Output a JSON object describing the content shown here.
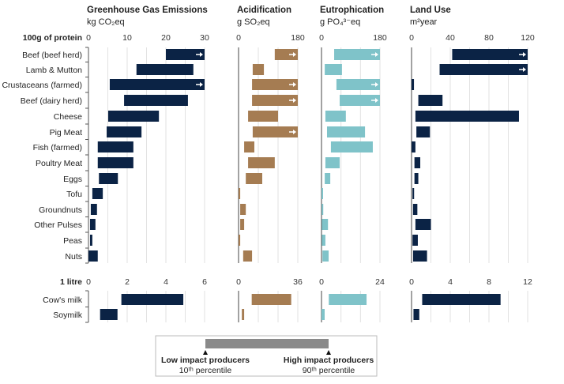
{
  "chart_data": {
    "type": "bar",
    "subtype": "range-bar",
    "panels": [
      {
        "id": "ghg",
        "title": "Greenhouse Gas Emissions",
        "unit": "kg CO₂eq",
        "color": "#0b2345"
      },
      {
        "id": "acid",
        "title": "Acidification",
        "unit": "g SO₂eq",
        "color": "#a57c52"
      },
      {
        "id": "eutro",
        "title": "Eutrophication",
        "unit": "g PO₄³⁻eq",
        "color": "#7fc3c9"
      },
      {
        "id": "land",
        "title": "Land Use",
        "unit": "m²year",
        "color": "#0b2345"
      }
    ],
    "sections": [
      {
        "label": "100g of protein",
        "axes": [
          {
            "range": [
              0,
              30
            ],
            "ticks": [
              "0",
              "10",
              "20",
              "30"
            ],
            "tick_values": [
              0,
              10,
              20,
              30
            ],
            "grid_step": 5
          },
          {
            "range": [
              0,
              180
            ],
            "ticks": [
              "0",
              "180"
            ],
            "tick_values": [
              0,
              180
            ],
            "grid_step": 60
          },
          {
            "range": [
              0,
              180
            ],
            "ticks": [
              "0",
              "180"
            ],
            "tick_values": [
              0,
              180
            ],
            "grid_step": 60
          },
          {
            "range": [
              0,
              120
            ],
            "ticks": [
              "0",
              "40",
              "80",
              "120"
            ],
            "tick_values": [
              0,
              40,
              80,
              120
            ],
            "grid_step": 20
          }
        ],
        "rows": [
          {
            "label": "Beef (beef herd)",
            "values": [
              [
                20,
                30,
                true
              ],
              [
                110,
                180,
                true
              ],
              [
                39,
                180,
                true
              ],
              [
                42,
                120,
                true
              ]
            ]
          },
          {
            "label": "Lamb & Mutton",
            "values": [
              [
                12.4,
                27.1
              ],
              [
                43,
                77
              ],
              [
                10,
                63
              ],
              [
                29,
                120,
                true
              ]
            ]
          },
          {
            "label": "Crustaceans (farmed)",
            "values": [
              [
                5.5,
                30,
                true
              ],
              [
                41,
                180,
                true
              ],
              [
                46,
                180,
                true
              ],
              [
                0,
                2.5
              ]
            ]
          },
          {
            "label": "Beef (dairy herd)",
            "values": [
              [
                9.2,
                25.7
              ],
              [
                41,
                180,
                true
              ],
              [
                56,
                180,
                true
              ],
              [
                7,
                32
              ]
            ]
          },
          {
            "label": "Cheese",
            "values": [
              [
                5.1,
                18.2
              ],
              [
                29,
                120
              ],
              [
                12,
                75
              ],
              [
                4,
                111
              ]
            ]
          },
          {
            "label": "Pig Meat",
            "values": [
              [
                4.7,
                13.7
              ],
              [
                43,
                180,
                true
              ],
              [
                17,
                134
              ],
              [
                5,
                19
              ]
            ]
          },
          {
            "label": "Fish (farmed)",
            "values": [
              [
                2.4,
                11.6
              ],
              [
                17,
                48
              ],
              [
                29,
                158
              ],
              [
                0,
                4
              ]
            ]
          },
          {
            "label": "Poultry Meat",
            "values": [
              [
                2.4,
                11.6
              ],
              [
                29,
                110
              ],
              [
                12,
                56
              ],
              [
                3,
                9
              ]
            ]
          },
          {
            "label": "Eggs",
            "values": [
              [
                2.7,
                7.6
              ],
              [
                22,
                72
              ],
              [
                10,
                27
              ],
              [
                3,
                7
              ]
            ]
          },
          {
            "label": "Tofu",
            "values": [
              [
                1.0,
                3.7
              ],
              [
                0,
                5
              ],
              [
                0,
                4
              ],
              [
                1,
                2.5
              ]
            ]
          },
          {
            "label": "Groundnuts",
            "values": [
              [
                0.6,
                2.2
              ],
              [
                5,
                22
              ],
              [
                0.5,
                5
              ],
              [
                1.5,
                6
              ]
            ]
          },
          {
            "label": "Other Pulses",
            "values": [
              [
                0.4,
                1.8
              ],
              [
                5,
                17
              ],
              [
                1,
                20
              ],
              [
                4,
                20
              ]
            ]
          },
          {
            "label": "Peas",
            "values": [
              [
                0.4,
                1.0
              ],
              [
                0,
                5
              ],
              [
                1,
                12
              ],
              [
                1,
                6.5
              ]
            ]
          },
          {
            "label": "Nuts",
            "values": [
              [
                0,
                2.4
              ],
              [
                14,
                41
              ],
              [
                3,
                22
              ],
              [
                1.6,
                16
              ]
            ]
          }
        ]
      },
      {
        "label": "1 litre",
        "axes": [
          {
            "range": [
              0,
              6
            ],
            "ticks": [
              "0",
              "2",
              "4",
              "6"
            ],
            "tick_values": [
              0,
              2,
              4,
              6
            ],
            "grid_step": 1
          },
          {
            "range": [
              0,
              36
            ],
            "ticks": [
              "0",
              "36"
            ],
            "tick_values": [
              0,
              36
            ],
            "grid_step": 12
          },
          {
            "range": [
              0,
              24
            ],
            "ticks": [
              "0",
              "24"
            ],
            "tick_values": [
              0,
              24
            ],
            "grid_step": 8
          },
          {
            "range": [
              0,
              12
            ],
            "ticks": [
              "0",
              "4",
              "8",
              "12"
            ],
            "tick_values": [
              0,
              4,
              8,
              12
            ],
            "grid_step": 2
          }
        ],
        "rows": [
          {
            "label": "Cow's milk",
            "values": [
              [
                1.7,
                4.9
              ],
              [
                8,
                32
              ],
              [
                3,
                18.5
              ],
              [
                1.1,
                9.2
              ]
            ]
          },
          {
            "label": "Soymilk",
            "values": [
              [
                0.6,
                1.5
              ],
              [
                2,
                3.4
              ],
              [
                0,
                1.3
              ],
              [
                0.2,
                0.8
              ]
            ]
          }
        ]
      }
    ],
    "legend": {
      "low_label": "Low impact producers",
      "low_sub": "10ᵗʰ percentile",
      "high_label": "High impact producers",
      "high_sub": "90ᵗʰ percentile",
      "bar_color": "#8a8a8a"
    }
  }
}
